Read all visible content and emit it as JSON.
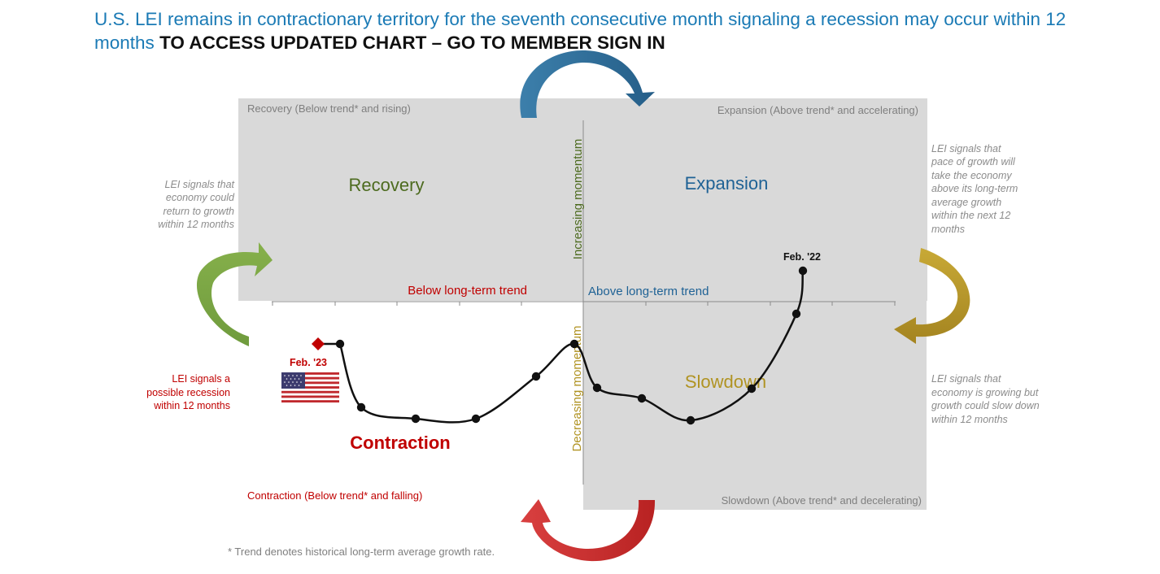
{
  "header": {
    "title": "U.S. LEI remains in contractionary territory for the seventh consecutive month signaling a recession may occur within 12 months",
    "cta": "TO ACCESS UPDATED CHART – GO TO MEMBER SIGN IN"
  },
  "quadrants": {
    "recovery": {
      "label": "Recovery",
      "caption": "Recovery (Below trend* and rising)"
    },
    "expansion": {
      "label": "Expansion",
      "caption": "Expansion (Above trend* and accelerating)"
    },
    "slowdown": {
      "label": "Slowdown",
      "caption": "Slowdown (Above trend* and decelerating)"
    },
    "contraction": {
      "label": "Contraction",
      "caption": "Contraction (Below trend* and falling)"
    }
  },
  "axes": {
    "increasing": "Increasing momentum",
    "decreasing": "Decreasing momentum",
    "below_trend": "Below long-term trend",
    "above_trend": "Above long-term trend"
  },
  "notes": {
    "recovery": [
      "LEI signals that",
      "economy could",
      "return to growth",
      "within 12 months"
    ],
    "expansion": [
      "LEI signals that",
      "pace of growth will",
      "take the economy",
      "above its long-term",
      "average growth",
      "within the next 12",
      "months"
    ],
    "slowdown": [
      "LEI signals that",
      "economy is growing but",
      "growth could slow down",
      "within 12 months"
    ],
    "recession": [
      "LEI signals a",
      "possible recession",
      "within 12 months"
    ]
  },
  "labels": {
    "start": "Feb. '22",
    "end": "Feb. '23"
  },
  "footnote": "* Trend denotes historical long-term average growth rate.",
  "colors": {
    "title": "#1a7ab5",
    "recovery": "#4d6b1f",
    "expansion": "#1f6295",
    "slowdown": "#b09322",
    "contraction": "#c00000",
    "quadrant_bg": "#d9d9d9",
    "arrow_top": "#2e6f9c",
    "arrow_left": "#6b9c3a",
    "arrow_right": "#b89a26",
    "arrow_bottom": "#cc2929"
  }
}
